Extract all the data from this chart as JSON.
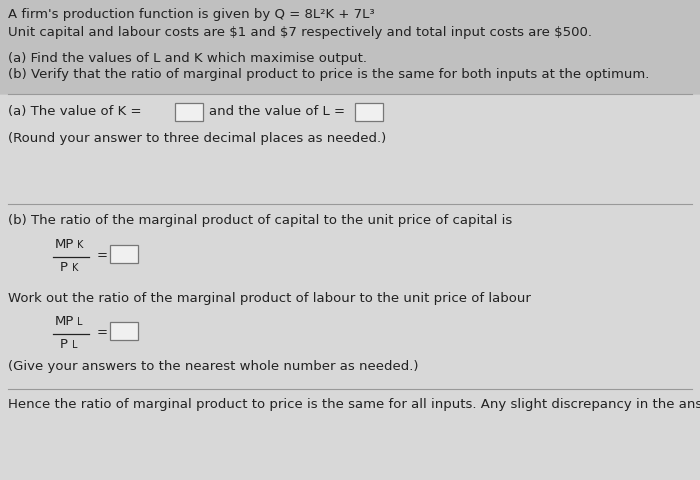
{
  "bg_color": "#c8c8c8",
  "text_color": "#222222",
  "title_lines": [
    "A firm's production function is given by Q = 8L²K + 7L³",
    "Unit capital and labour costs are $1 and $7 respectively and total input costs are $500."
  ],
  "subtitle_lines": [
    "(a) Find the values of L and K which maximise output.",
    "(b) Verify that the ratio of marginal product to price is the same for both inputs at the optimum."
  ],
  "part_a_label": "(a) The value of K =",
  "and_label": "and the value of L =",
  "round_note": "(Round your answer to three decimal places as needed.)",
  "part_b_intro": "(b) The ratio of the marginal product of capital to the unit price of capital is",
  "mpk_numerator": "MP",
  "mpk_subscript_num": "K",
  "mpk_denominator": "P",
  "mpk_subscript_den": "K",
  "equals": "=",
  "work_out_text": "Work out the ratio of the marginal product of labour to the unit price of labour",
  "mpl_numerator": "MP",
  "mpl_subscript_num": "L",
  "mpl_denominator": "P",
  "mpl_subscript_den": "L",
  "give_note": "(Give your answers to the nearest whole number as needed.)",
  "hence_text": "Hence the ratio of marginal product to price is the same for all inputs. Any slight discrepancy in the answers is due to rounding.",
  "line1_color": "#999999",
  "box_edge_color": "#777777",
  "box_face_color": "#f0f0f0"
}
